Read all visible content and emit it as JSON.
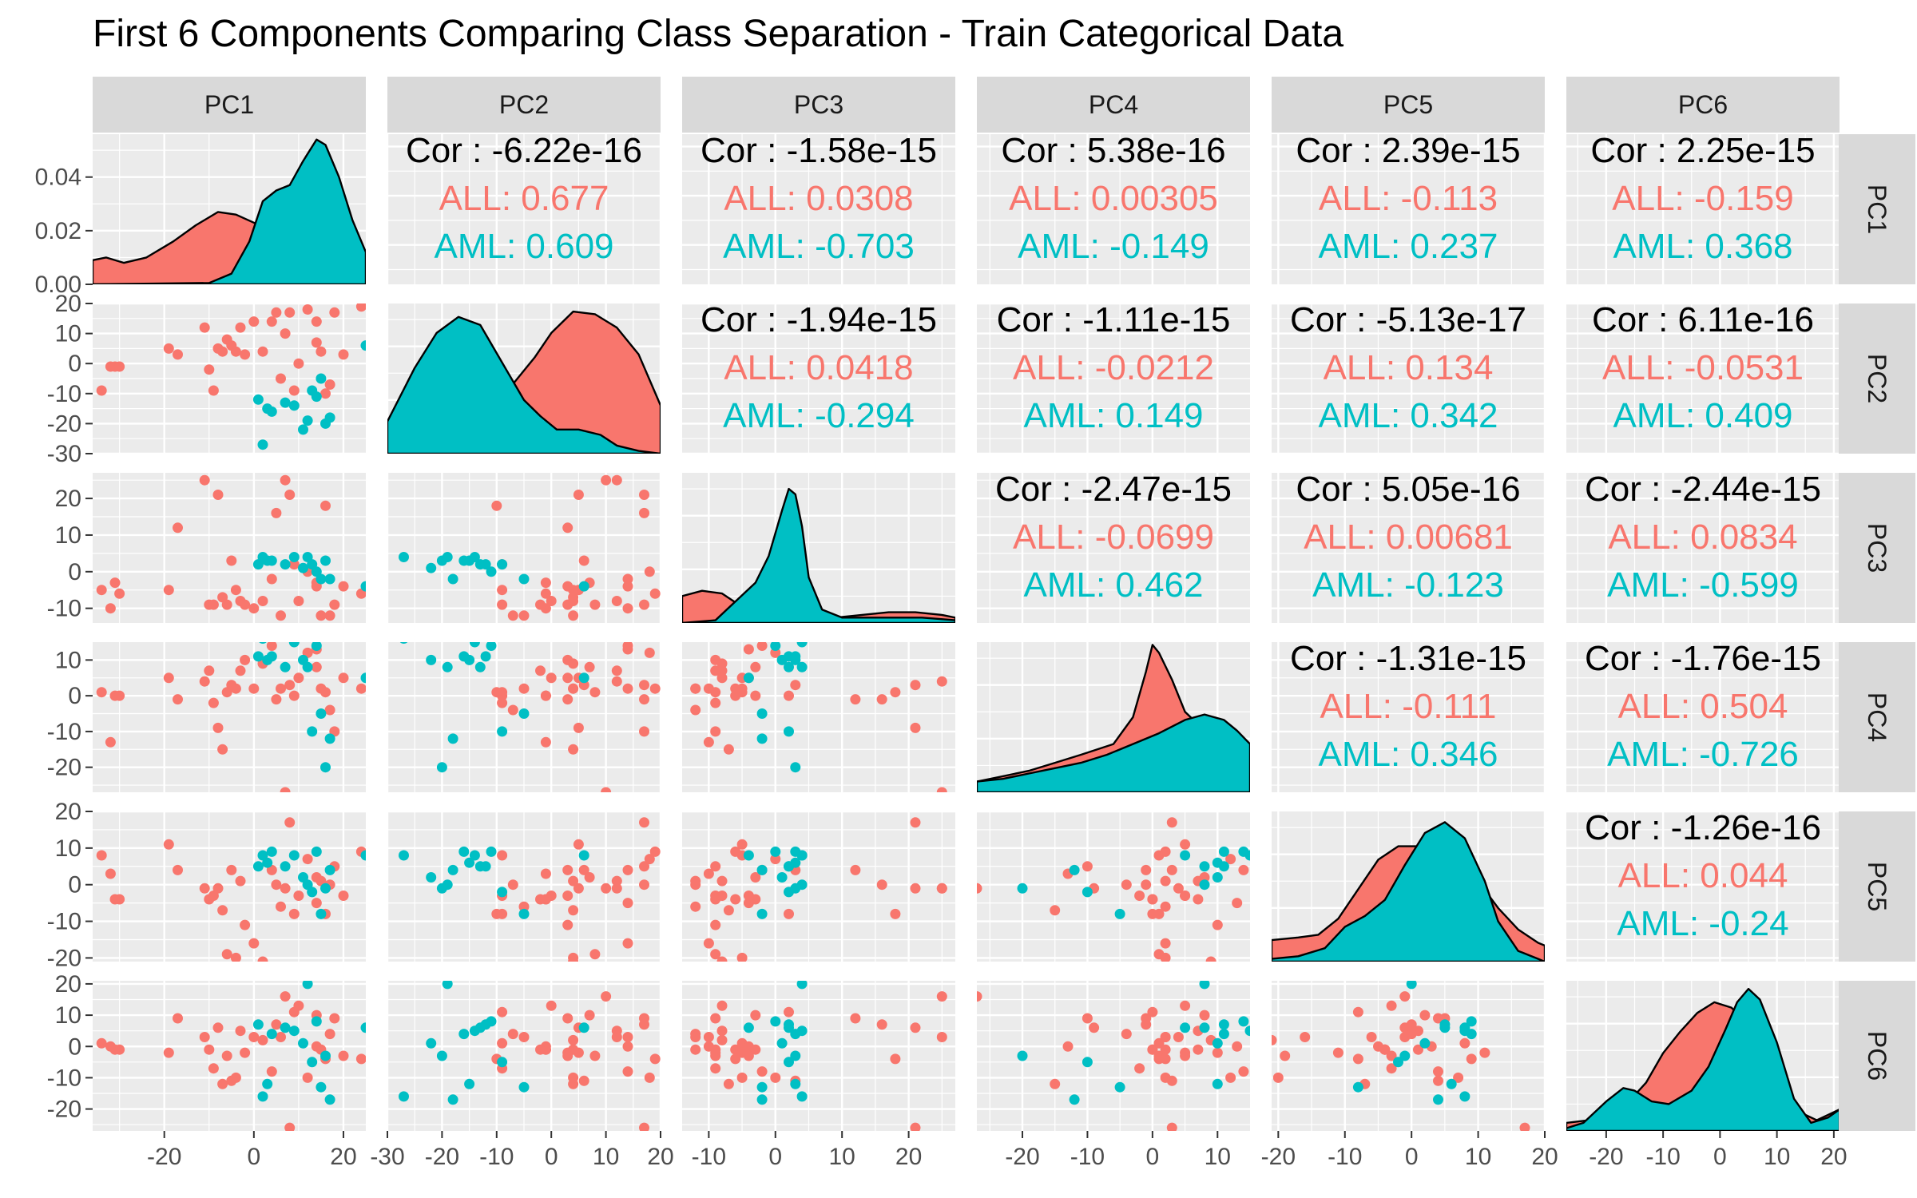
{
  "title": "First 6 Components Comparing Class Separation - Train Categorical Data",
  "colors": {
    "ALL": "#F8766D",
    "AML": "#00BFC4",
    "panel": "#EBEBEB",
    "strip": "#D9D9D9",
    "grid": "#FFFFFF"
  },
  "chart_data": {
    "type": "scatter",
    "variables": [
      "PC1",
      "PC2",
      "PC3",
      "PC4",
      "PC5",
      "PC6"
    ],
    "groups": [
      "ALL",
      "AML"
    ],
    "axes": {
      "PC1": {
        "lim": [
          -36,
          25
        ],
        "ticks": [
          -20,
          0,
          20
        ]
      },
      "PC2": {
        "lim": [
          -30,
          20
        ],
        "ticks": [
          -30,
          -20,
          -10,
          0,
          10,
          20
        ]
      },
      "PC3": {
        "lim": [
          -14,
          27
        ],
        "ticks": [
          -10,
          0,
          10,
          20
        ]
      },
      "PC4": {
        "lim": [
          -27,
          15
        ],
        "ticks": [
          -20,
          -10,
          0,
          10
        ]
      },
      "PC5": {
        "lim": [
          -21,
          20
        ],
        "ticks": [
          -20,
          -10,
          0,
          10,
          20
        ]
      },
      "PC6": {
        "lim": [
          -27,
          21
        ],
        "ticks": [
          -20,
          -10,
          0,
          10,
          20
        ]
      }
    },
    "density_yaxis": {
      "lim": [
        0,
        0.056
      ],
      "ticks": [
        0.0,
        0.02,
        0.04
      ],
      "tick_labels": [
        "0.00",
        "0.02",
        "0.04"
      ]
    },
    "correlations": [
      {
        "row": "PC1",
        "col": "PC2",
        "overall": "Cor : -6.22e-16",
        "ALL": "ALL: 0.677",
        "AML": "AML: 0.609"
      },
      {
        "row": "PC1",
        "col": "PC3",
        "overall": "Cor : -1.58e-15",
        "ALL": "ALL: 0.0308",
        "AML": "AML: -0.703"
      },
      {
        "row": "PC1",
        "col": "PC4",
        "overall": "Cor : 5.38e-16",
        "ALL": "ALL: 0.00305",
        "AML": "AML: -0.149"
      },
      {
        "row": "PC1",
        "col": "PC5",
        "overall": "Cor : 2.39e-15",
        "ALL": "ALL: -0.113",
        "AML": "AML: 0.237"
      },
      {
        "row": "PC1",
        "col": "PC6",
        "overall": "Cor : 2.25e-15",
        "ALL": "ALL: -0.159",
        "AML": "AML: 0.368"
      },
      {
        "row": "PC2",
        "col": "PC3",
        "overall": "Cor : -1.94e-15",
        "ALL": "ALL: 0.0418",
        "AML": "AML: -0.294"
      },
      {
        "row": "PC2",
        "col": "PC4",
        "overall": "Cor : -1.11e-15",
        "ALL": "ALL: -0.0212",
        "AML": "AML: 0.149"
      },
      {
        "row": "PC2",
        "col": "PC5",
        "overall": "Cor : -5.13e-17",
        "ALL": "ALL: 0.134",
        "AML": "AML: 0.342"
      },
      {
        "row": "PC2",
        "col": "PC6",
        "overall": "Cor : 6.11e-16",
        "ALL": "ALL: -0.0531",
        "AML": "AML: 0.409"
      },
      {
        "row": "PC3",
        "col": "PC4",
        "overall": "Cor : -2.47e-15",
        "ALL": "ALL: -0.0699",
        "AML": "AML: 0.462"
      },
      {
        "row": "PC3",
        "col": "PC5",
        "overall": "Cor : 5.05e-16",
        "ALL": "ALL: 0.00681",
        "AML": "AML: -0.123"
      },
      {
        "row": "PC3",
        "col": "PC6",
        "overall": "Cor : -2.44e-15",
        "ALL": "ALL: 0.0834",
        "AML": "AML: -0.599"
      },
      {
        "row": "PC4",
        "col": "PC5",
        "overall": "Cor : -1.31e-15",
        "ALL": "ALL: -0.111",
        "AML": "AML: 0.346"
      },
      {
        "row": "PC4",
        "col": "PC6",
        "overall": "Cor : -1.76e-15",
        "ALL": "ALL: 0.504",
        "AML": "AML: -0.726"
      },
      {
        "row": "PC5",
        "col": "PC6",
        "overall": "Cor : -1.26e-16",
        "ALL": "ALL: 0.044",
        "AML": "AML: -0.24"
      }
    ],
    "points": {
      "ALL": [
        [
          -34,
          -9,
          -5,
          1,
          8,
          1
        ],
        [
          -32,
          -1,
          -10,
          -13,
          3,
          0
        ],
        [
          -31,
          -1,
          -3,
          0,
          -4,
          -1
        ],
        [
          -30,
          -1,
          -6,
          0,
          -4,
          -1
        ],
        [
          -19,
          5,
          -5,
          5,
          11,
          -2
        ],
        [
          -17,
          3,
          12,
          -1,
          4,
          9
        ],
        [
          -11,
          12,
          25,
          4,
          -1,
          3
        ],
        [
          -10,
          -2,
          -9,
          7,
          -4,
          -1
        ],
        [
          -9,
          -9,
          -9,
          -2,
          -3,
          -7
        ],
        [
          -8,
          5,
          21,
          -9,
          -1,
          6
        ],
        [
          -7,
          4,
          -7,
          -15,
          -7,
          -12
        ],
        [
          -6,
          8,
          -9,
          1,
          -19,
          -3
        ],
        [
          -5,
          6,
          3,
          3,
          4,
          -11
        ],
        [
          -4,
          4,
          -5,
          2,
          -20,
          -10
        ],
        [
          -3,
          12,
          -8,
          7,
          1,
          5
        ],
        [
          -2,
          3,
          -9,
          10,
          -11,
          -2
        ],
        [
          0,
          14,
          -10,
          2,
          -16,
          3
        ],
        [
          2,
          4,
          -8,
          9,
          -21,
          2
        ],
        [
          4,
          14,
          -2,
          14,
          4,
          -8
        ],
        [
          5,
          17,
          16,
          -1,
          0,
          7
        ],
        [
          6,
          -5,
          -12,
          2,
          -6,
          3
        ],
        [
          7,
          10,
          25,
          -27,
          -1,
          16
        ],
        [
          8,
          17,
          21,
          3,
          17,
          -26
        ],
        [
          9,
          -9,
          2,
          0,
          -8,
          11
        ],
        [
          10,
          0,
          -8,
          5,
          -3,
          13
        ],
        [
          12,
          18,
          0,
          12,
          7,
          -10
        ],
        [
          14,
          14,
          -4,
          13,
          -5,
          0
        ],
        [
          14,
          7,
          -3,
          8,
          2,
          10
        ],
        [
          15,
          4,
          -12,
          2,
          1,
          -1
        ],
        [
          16,
          -10,
          18,
          1,
          -8,
          -4
        ],
        [
          17,
          -7,
          -12,
          -4,
          0,
          4
        ],
        [
          18,
          17,
          -9,
          -10,
          5,
          9
        ],
        [
          20,
          3,
          -4,
          5,
          -3,
          -3
        ],
        [
          24,
          19,
          -6,
          2,
          9,
          -4
        ]
      ],
      "AML": [
        [
          1,
          -12,
          2,
          11,
          5,
          7
        ],
        [
          2,
          -27,
          4,
          16,
          8,
          -16
        ],
        [
          3,
          -15,
          3,
          10,
          6,
          -12
        ],
        [
          4,
          -16,
          3,
          11,
          9,
          4
        ],
        [
          7,
          -13,
          2,
          8,
          5,
          6
        ],
        [
          9,
          -14,
          4,
          15,
          8,
          5
        ],
        [
          11,
          -22,
          1,
          10,
          2,
          1
        ],
        [
          12,
          -19,
          4,
          8,
          0,
          20
        ],
        [
          13,
          -9,
          2,
          -10,
          -2,
          -5
        ],
        [
          14,
          -11,
          0,
          14,
          9,
          8
        ],
        [
          15,
          -5,
          -2,
          -5,
          -8,
          -13
        ],
        [
          16,
          -20,
          3,
          -20,
          -1,
          -3
        ],
        [
          17,
          -18,
          -2,
          -12,
          4,
          -17
        ],
        [
          25,
          6,
          -4,
          5,
          8,
          6
        ]
      ]
    },
    "densities": {
      "PC1": {
        "ALL": [
          [
            -36,
            0.009
          ],
          [
            -33,
            0.01
          ],
          [
            -29,
            0.008
          ],
          [
            -24,
            0.01
          ],
          [
            -18,
            0.016
          ],
          [
            -13,
            0.022
          ],
          [
            -8,
            0.027
          ],
          [
            -4,
            0.026
          ],
          [
            0,
            0.023
          ],
          [
            4,
            0.02
          ],
          [
            9,
            0.02
          ],
          [
            14,
            0.018
          ],
          [
            19,
            0.013
          ],
          [
            25,
            0.007
          ]
        ],
        "AML": [
          [
            -36,
            0
          ],
          [
            -10,
            0.0005
          ],
          [
            -5,
            0.004
          ],
          [
            -1,
            0.016
          ],
          [
            2,
            0.031
          ],
          [
            5,
            0.035
          ],
          [
            8,
            0.037
          ],
          [
            11,
            0.046
          ],
          [
            14,
            0.054
          ],
          [
            16,
            0.052
          ],
          [
            19,
            0.04
          ],
          [
            22,
            0.024
          ],
          [
            25,
            0.012
          ]
        ]
      },
      "PC2": {
        "ALL": [
          [
            -30,
            0.008
          ],
          [
            -24,
            0.012
          ],
          [
            -18,
            0.017
          ],
          [
            -12,
            0.022
          ],
          [
            -7,
            0.026
          ],
          [
            -3,
            0.036
          ],
          [
            0,
            0.045
          ],
          [
            4,
            0.053
          ],
          [
            8,
            0.052
          ],
          [
            12,
            0.047
          ],
          [
            16,
            0.037
          ],
          [
            20,
            0.018
          ]
        ],
        "AML": [
          [
            -30,
            0.012
          ],
          [
            -25,
            0.032
          ],
          [
            -21,
            0.045
          ],
          [
            -17,
            0.051
          ],
          [
            -13,
            0.048
          ],
          [
            -9,
            0.034
          ],
          [
            -5,
            0.02
          ],
          [
            -2,
            0.014
          ],
          [
            1,
            0.009
          ],
          [
            5,
            0.009
          ],
          [
            9,
            0.007
          ],
          [
            12,
            0.003
          ],
          [
            16,
            0.001
          ],
          [
            20,
            0
          ]
        ]
      },
      "PC3": {
        "ALL": [
          [
            -14,
            0.01
          ],
          [
            -11,
            0.012
          ],
          [
            -8,
            0.011
          ],
          [
            -5,
            0.006
          ],
          [
            -2,
            0.002
          ],
          [
            2,
            0.001
          ],
          [
            6,
            0.001
          ],
          [
            9,
            0.002
          ],
          [
            13,
            0.003
          ],
          [
            17,
            0.004
          ],
          [
            21,
            0.004
          ],
          [
            25,
            0.003
          ],
          [
            27,
            0.002
          ]
        ],
        "AML": [
          [
            -14,
            0
          ],
          [
            -9,
            0.001
          ],
          [
            -6,
            0.008
          ],
          [
            -3,
            0.015
          ],
          [
            -1,
            0.025
          ],
          [
            1,
            0.042
          ],
          [
            2,
            0.05
          ],
          [
            3,
            0.048
          ],
          [
            4,
            0.036
          ],
          [
            5,
            0.017
          ],
          [
            7,
            0.005
          ],
          [
            10,
            0.002
          ],
          [
            14,
            0.002
          ],
          [
            18,
            0.002
          ],
          [
            22,
            0.002
          ],
          [
            27,
            0.001
          ]
        ]
      },
      "PC4": {
        "ALL": [
          [
            -27,
            0.004
          ],
          [
            -23,
            0.006
          ],
          [
            -19,
            0.008
          ],
          [
            -15,
            0.011
          ],
          [
            -11,
            0.014
          ],
          [
            -6,
            0.018
          ],
          [
            -3,
            0.028
          ],
          [
            -1,
            0.045
          ],
          [
            0,
            0.055
          ],
          [
            1,
            0.052
          ],
          [
            3,
            0.042
          ],
          [
            5,
            0.03
          ],
          [
            8,
            0.023
          ],
          [
            11,
            0.018
          ],
          [
            15,
            0.01
          ]
        ],
        "AML": [
          [
            -27,
            0.004
          ],
          [
            -23,
            0.005
          ],
          [
            -19,
            0.007
          ],
          [
            -15,
            0.009
          ],
          [
            -11,
            0.011
          ],
          [
            -7,
            0.014
          ],
          [
            -3,
            0.018
          ],
          [
            1,
            0.022
          ],
          [
            5,
            0.027
          ],
          [
            8,
            0.029
          ],
          [
            11,
            0.027
          ],
          [
            13,
            0.023
          ],
          [
            15,
            0.018
          ]
        ]
      },
      "PC5": {
        "ALL": [
          [
            -21,
            0.008
          ],
          [
            -17,
            0.009
          ],
          [
            -14,
            0.01
          ],
          [
            -11,
            0.016
          ],
          [
            -8,
            0.027
          ],
          [
            -5,
            0.038
          ],
          [
            -2,
            0.043
          ],
          [
            1,
            0.043
          ],
          [
            4,
            0.042
          ],
          [
            7,
            0.04
          ],
          [
            10,
            0.03
          ],
          [
            13,
            0.02
          ],
          [
            16,
            0.012
          ],
          [
            19,
            0.007
          ],
          [
            20,
            0.006
          ]
        ],
        "AML": [
          [
            -21,
            0.001
          ],
          [
            -17,
            0.002
          ],
          [
            -13,
            0.005
          ],
          [
            -10,
            0.013
          ],
          [
            -7,
            0.017
          ],
          [
            -4,
            0.023
          ],
          [
            -1,
            0.036
          ],
          [
            2,
            0.048
          ],
          [
            5,
            0.052
          ],
          [
            8,
            0.046
          ],
          [
            11,
            0.03
          ],
          [
            13,
            0.015
          ],
          [
            16,
            0.004
          ],
          [
            19,
            0.001
          ],
          [
            20,
            0
          ]
        ]
      },
      "PC6": {
        "ALL": [
          [
            -27,
            0.003
          ],
          [
            -23,
            0.004
          ],
          [
            -19,
            0.007
          ],
          [
            -16,
            0.011
          ],
          [
            -13,
            0.018
          ],
          [
            -10,
            0.029
          ],
          [
            -7,
            0.037
          ],
          [
            -4,
            0.044
          ],
          [
            -1,
            0.048
          ],
          [
            2,
            0.046
          ],
          [
            5,
            0.04
          ],
          [
            8,
            0.03
          ],
          [
            11,
            0.017
          ],
          [
            14,
            0.007
          ],
          [
            17,
            0.004
          ],
          [
            21,
            0.008
          ]
        ],
        "AML": [
          [
            -27,
            0.001
          ],
          [
            -24,
            0.003
          ],
          [
            -20,
            0.011
          ],
          [
            -17,
            0.016
          ],
          [
            -15,
            0.015
          ],
          [
            -12,
            0.011
          ],
          [
            -9,
            0.01
          ],
          [
            -5,
            0.015
          ],
          [
            -2,
            0.024
          ],
          [
            1,
            0.038
          ],
          [
            3,
            0.048
          ],
          [
            5,
            0.053
          ],
          [
            7,
            0.049
          ],
          [
            10,
            0.033
          ],
          [
            13,
            0.012
          ],
          [
            16,
            0.003
          ],
          [
            19,
            0.005
          ],
          [
            21,
            0.008
          ]
        ]
      }
    }
  }
}
